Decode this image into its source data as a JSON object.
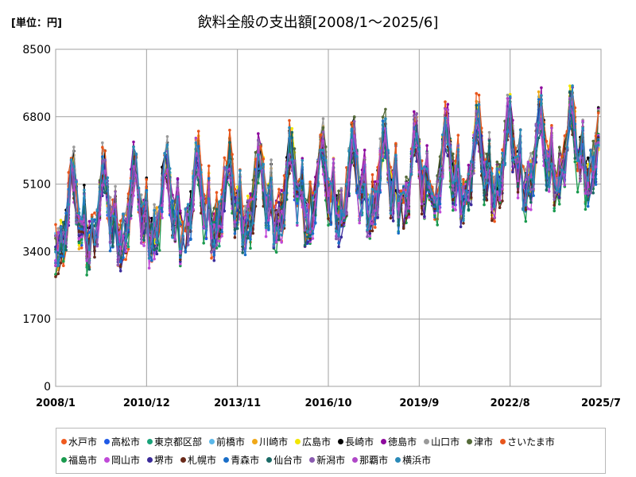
{
  "unit_label": "[単位：円]",
  "chart_data": {
    "type": "line",
    "title": "飲料全般の支出額[2008/1～2025/6]",
    "xlabel": "",
    "ylabel": "",
    "ylim": [
      0,
      8500
    ],
    "y_ticks": [
      "0",
      "1700",
      "3400",
      "5100",
      "6800",
      "8500"
    ],
    "x_ticks": [
      "2008/1",
      "2010/12",
      "2013/11",
      "2016/10",
      "2019/9",
      "2022/8",
      "2025/7"
    ],
    "grid": true,
    "legend_position": "bottom",
    "x_range": [
      "2008/1",
      "2025/7"
    ],
    "series": [
      {
        "name": "水戸市",
        "color": "#f05a1e"
      },
      {
        "name": "高松市",
        "color": "#1f5ae6"
      },
      {
        "name": "東京都区部",
        "color": "#19a37a"
      },
      {
        "name": "前橋市",
        "color": "#5bb8ea"
      },
      {
        "name": "川崎市",
        "color": "#f0a818"
      },
      {
        "name": "広島市",
        "color": "#f2e600"
      },
      {
        "name": "長崎市",
        "color": "#000000"
      },
      {
        "name": "徳島市",
        "color": "#8e0a9e"
      },
      {
        "name": "山口市",
        "color": "#9a9a9a"
      },
      {
        "name": "津市",
        "color": "#556b3a"
      },
      {
        "name": "さいたま市",
        "color": "#e8561c"
      },
      {
        "name": "福島市",
        "color": "#1a9a4e"
      },
      {
        "name": "岡山市",
        "color": "#c04ad8"
      },
      {
        "name": "堺市",
        "color": "#3a2a9a"
      },
      {
        "name": "札幌市",
        "color": "#6a2a1a"
      },
      {
        "name": "青森市",
        "color": "#1a6ec8"
      },
      {
        "name": "仙台市",
        "color": "#1a6a66"
      },
      {
        "name": "新潟市",
        "color": "#8a5ab0"
      },
      {
        "name": "那覇市",
        "color": "#b048c8"
      },
      {
        "name": "横浜市",
        "color": "#2a8ab8"
      }
    ]
  }
}
